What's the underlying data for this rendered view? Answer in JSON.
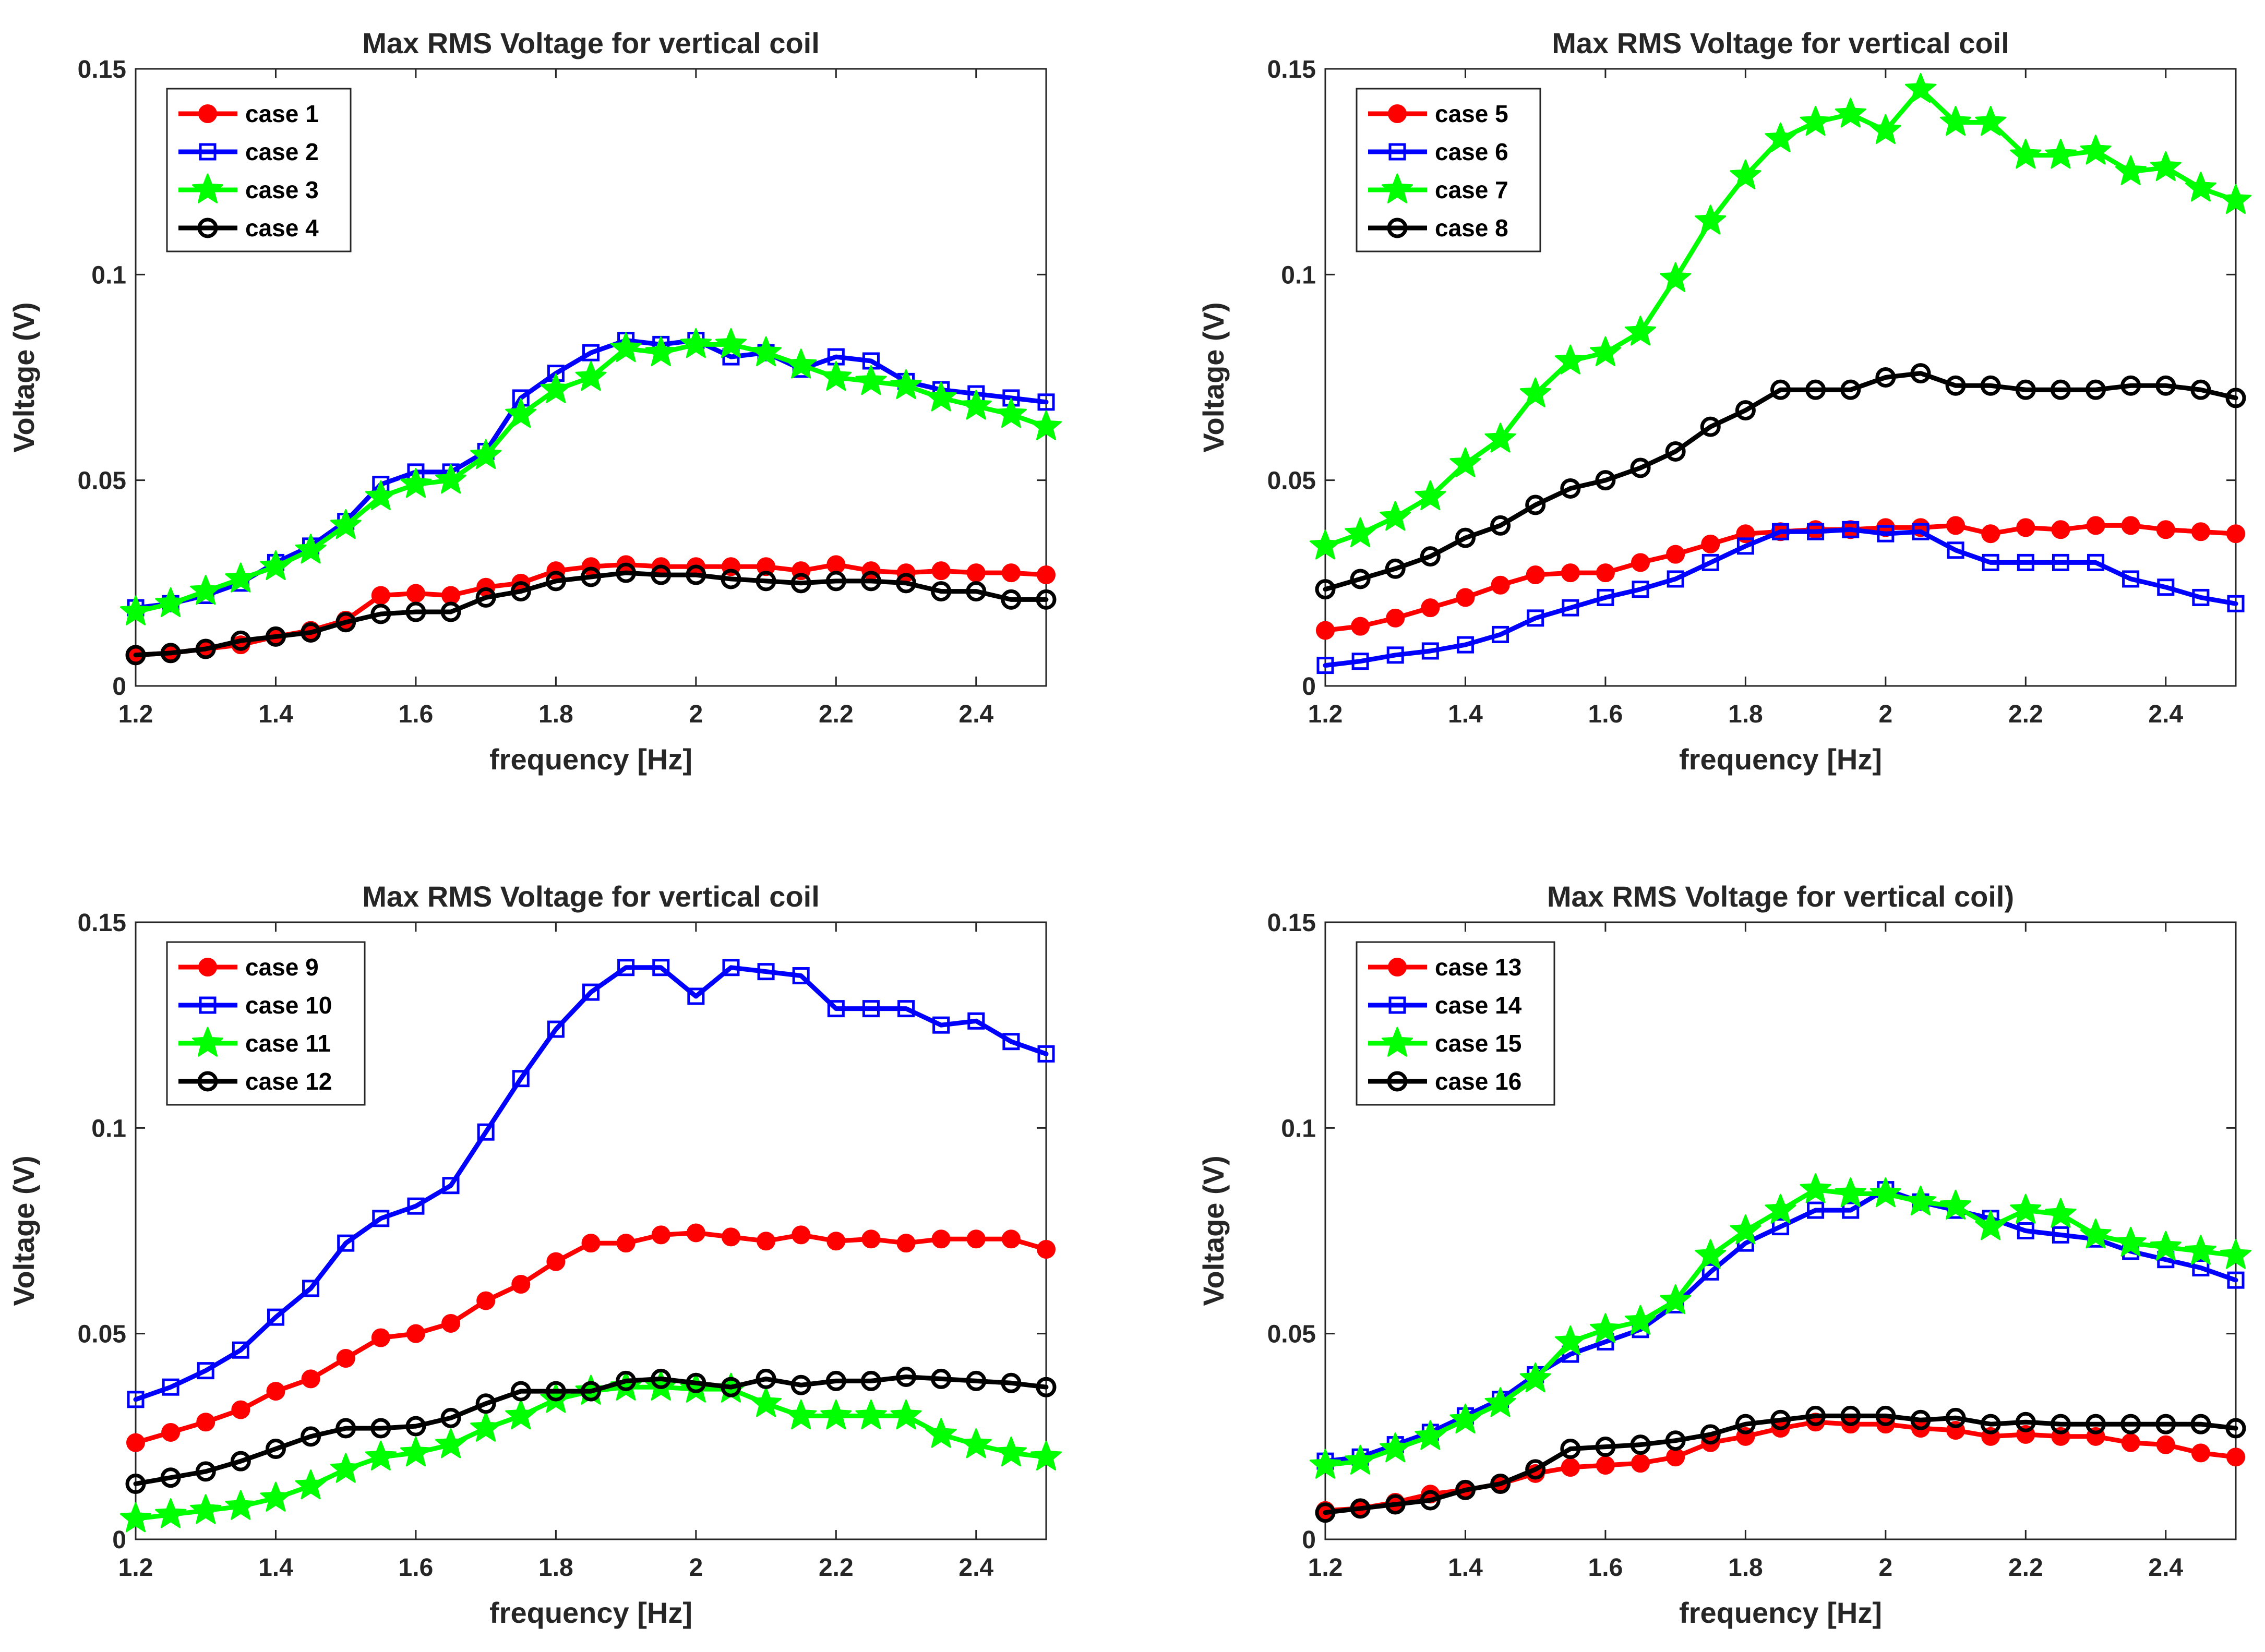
{
  "chart_data": [
    {
      "type": "line",
      "title": "Max RMS Voltage for vertical coil",
      "xlabel": "frequency [Hz]",
      "ylabel": "Voltage (V)",
      "xlim": [
        1.2,
        2.5
      ],
      "ylim": [
        0,
        0.15
      ],
      "xticks": [
        "1.2",
        "1.4",
        "1.6",
        "1.8",
        "2",
        "2.2",
        "2.4"
      ],
      "yticks": [
        "0",
        "0.05",
        "0.1",
        "0.15"
      ],
      "legend_position": "top-left",
      "x": [
        1.2,
        1.25,
        1.3,
        1.35,
        1.4,
        1.45,
        1.5,
        1.55,
        1.6,
        1.65,
        1.7,
        1.75,
        1.8,
        1.85,
        1.9,
        1.95,
        2.0,
        2.05,
        2.1,
        2.15,
        2.2,
        2.25,
        2.3,
        2.35,
        2.4,
        2.45,
        2.5
      ],
      "series": [
        {
          "name": "case 1",
          "color": "#ff0000",
          "marker": "circle-filled",
          "values": [
            0.0075,
            0.008,
            0.009,
            0.01,
            0.012,
            0.0135,
            0.016,
            0.022,
            0.0225,
            0.022,
            0.024,
            0.025,
            0.028,
            0.029,
            0.0295,
            0.029,
            0.029,
            0.029,
            0.029,
            0.028,
            0.0295,
            0.028,
            0.0275,
            0.028,
            0.0275,
            0.0275,
            0.027
          ]
        },
        {
          "name": "case 2",
          "color": "#0000ff",
          "marker": "square-open",
          "values": [
            0.019,
            0.02,
            0.022,
            0.025,
            0.03,
            0.034,
            0.04,
            0.049,
            0.052,
            0.052,
            0.057,
            0.07,
            0.076,
            0.081,
            0.084,
            0.083,
            0.084,
            0.08,
            0.081,
            0.077,
            0.08,
            0.079,
            0.074,
            0.072,
            0.071,
            0.07,
            0.069
          ]
        },
        {
          "name": "case 3",
          "color": "#00ff00",
          "marker": "star",
          "values": [
            0.018,
            0.02,
            0.023,
            0.026,
            0.029,
            0.033,
            0.039,
            0.046,
            0.049,
            0.05,
            0.056,
            0.066,
            0.072,
            0.075,
            0.082,
            0.081,
            0.083,
            0.083,
            0.081,
            0.078,
            0.075,
            0.074,
            0.073,
            0.07,
            0.068,
            0.066,
            0.063
          ]
        },
        {
          "name": "case 4",
          "color": "#000000",
          "marker": "circle-open",
          "values": [
            0.0075,
            0.008,
            0.009,
            0.011,
            0.012,
            0.013,
            0.0155,
            0.0175,
            0.018,
            0.018,
            0.0215,
            0.023,
            0.0255,
            0.0265,
            0.0275,
            0.027,
            0.027,
            0.026,
            0.0255,
            0.025,
            0.0255,
            0.0255,
            0.025,
            0.023,
            0.023,
            0.021,
            0.021
          ]
        }
      ]
    },
    {
      "type": "line",
      "title": "Max RMS Voltage for vertical coil",
      "xlabel": "frequency [Hz]",
      "ylabel": "Voltage (V)",
      "xlim": [
        1.2,
        2.5
      ],
      "ylim": [
        0,
        0.15
      ],
      "xticks": [
        "1.2",
        "1.4",
        "1.6",
        "1.8",
        "2",
        "2.2",
        "2.4"
      ],
      "yticks": [
        "0",
        "0.05",
        "0.1",
        "0.15"
      ],
      "legend_position": "top-left",
      "x": [
        1.2,
        1.25,
        1.3,
        1.35,
        1.4,
        1.45,
        1.5,
        1.55,
        1.6,
        1.65,
        1.7,
        1.75,
        1.8,
        1.85,
        1.9,
        1.95,
        2.0,
        2.05,
        2.1,
        2.15,
        2.2,
        2.25,
        2.3,
        2.35,
        2.4,
        2.45,
        2.5
      ],
      "series": [
        {
          "name": "case 5",
          "color": "#ff0000",
          "marker": "circle-filled",
          "values": [
            0.0135,
            0.0145,
            0.0165,
            0.019,
            0.0215,
            0.0245,
            0.027,
            0.0275,
            0.0275,
            0.03,
            0.032,
            0.0345,
            0.037,
            0.0375,
            0.038,
            0.038,
            0.0385,
            0.0385,
            0.039,
            0.037,
            0.0385,
            0.038,
            0.039,
            0.039,
            0.038,
            0.0375,
            0.037
          ]
        },
        {
          "name": "case 6",
          "color": "#0000ff",
          "marker": "square-open",
          "values": [
            0.005,
            0.006,
            0.0075,
            0.0085,
            0.01,
            0.0125,
            0.0165,
            0.019,
            0.0215,
            0.0235,
            0.026,
            0.03,
            0.034,
            0.0375,
            0.0375,
            0.038,
            0.037,
            0.0375,
            0.033,
            0.03,
            0.03,
            0.03,
            0.03,
            0.026,
            0.024,
            0.0215,
            0.02
          ]
        },
        {
          "name": "case 7",
          "color": "#00ff00",
          "marker": "star",
          "values": [
            0.034,
            0.037,
            0.041,
            0.046,
            0.054,
            0.06,
            0.071,
            0.079,
            0.081,
            0.086,
            0.099,
            0.113,
            0.124,
            0.133,
            0.137,
            0.139,
            0.135,
            0.145,
            0.137,
            0.137,
            0.129,
            0.129,
            0.13,
            0.125,
            0.126,
            0.121,
            0.118
          ]
        },
        {
          "name": "case 8",
          "color": "#000000",
          "marker": "circle-open",
          "values": [
            0.0235,
            0.026,
            0.0285,
            0.0315,
            0.036,
            0.039,
            0.044,
            0.048,
            0.05,
            0.053,
            0.057,
            0.063,
            0.067,
            0.072,
            0.072,
            0.072,
            0.075,
            0.076,
            0.073,
            0.073,
            0.072,
            0.072,
            0.072,
            0.073,
            0.073,
            0.072,
            0.07
          ]
        }
      ]
    },
    {
      "type": "line",
      "title": "Max RMS Voltage for vertical coil",
      "xlabel": "frequency [Hz]",
      "ylabel": "Voltage (V)",
      "xlim": [
        1.2,
        2.5
      ],
      "ylim": [
        0,
        0.15
      ],
      "xticks": [
        "1.2",
        "1.4",
        "1.6",
        "1.8",
        "2",
        "2.2",
        "2.4"
      ],
      "yticks": [
        "0",
        "0.05",
        "0.1",
        "0.15"
      ],
      "legend_position": "top-left",
      "x": [
        1.2,
        1.25,
        1.3,
        1.35,
        1.4,
        1.45,
        1.5,
        1.55,
        1.6,
        1.65,
        1.7,
        1.75,
        1.8,
        1.85,
        1.9,
        1.95,
        2.0,
        2.05,
        2.1,
        2.15,
        2.2,
        2.25,
        2.3,
        2.35,
        2.4,
        2.45,
        2.5
      ],
      "series": [
        {
          "name": "case 9",
          "color": "#ff0000",
          "marker": "circle-filled",
          "values": [
            0.0235,
            0.026,
            0.0285,
            0.0315,
            0.036,
            0.039,
            0.044,
            0.049,
            0.05,
            0.0525,
            0.058,
            0.062,
            0.0675,
            0.072,
            0.072,
            0.074,
            0.0745,
            0.0735,
            0.0725,
            0.074,
            0.0725,
            0.073,
            0.072,
            0.073,
            0.073,
            0.073,
            0.0705
          ]
        },
        {
          "name": "case 10",
          "color": "#0000ff",
          "marker": "square-open",
          "values": [
            0.034,
            0.037,
            0.041,
            0.046,
            0.054,
            0.061,
            0.072,
            0.078,
            0.081,
            0.086,
            0.099,
            0.112,
            0.124,
            0.133,
            0.139,
            0.139,
            0.132,
            0.139,
            0.138,
            0.137,
            0.129,
            0.129,
            0.129,
            0.125,
            0.126,
            0.121,
            0.118
          ]
        },
        {
          "name": "case 11",
          "color": "#00ff00",
          "marker": "star",
          "values": [
            0.005,
            0.006,
            0.007,
            0.008,
            0.01,
            0.013,
            0.017,
            0.02,
            0.021,
            0.023,
            0.027,
            0.03,
            0.034,
            0.036,
            0.037,
            0.037,
            0.0365,
            0.0365,
            0.033,
            0.03,
            0.03,
            0.03,
            0.03,
            0.0255,
            0.023,
            0.021,
            0.02
          ]
        },
        {
          "name": "case 12",
          "color": "#000000",
          "marker": "circle-open",
          "values": [
            0.0135,
            0.015,
            0.0165,
            0.019,
            0.022,
            0.025,
            0.027,
            0.027,
            0.0275,
            0.0295,
            0.033,
            0.036,
            0.036,
            0.036,
            0.0385,
            0.039,
            0.038,
            0.037,
            0.039,
            0.0375,
            0.0385,
            0.0385,
            0.0395,
            0.039,
            0.0385,
            0.038,
            0.037
          ]
        }
      ]
    },
    {
      "type": "line",
      "title": "Max RMS Voltage for vertical coil)",
      "xlabel": "frequency [Hz]",
      "ylabel": "Voltage (V)",
      "xlim": [
        1.2,
        2.5
      ],
      "ylim": [
        0,
        0.15
      ],
      "xticks": [
        "1.2",
        "1.4",
        "1.6",
        "1.8",
        "2",
        "2.2",
        "2.4"
      ],
      "yticks": [
        "0",
        "0.05",
        "0.1",
        "0.15"
      ],
      "legend_position": "top-left",
      "x": [
        1.2,
        1.25,
        1.3,
        1.35,
        1.4,
        1.45,
        1.5,
        1.55,
        1.6,
        1.65,
        1.7,
        1.75,
        1.8,
        1.85,
        1.9,
        1.95,
        2.0,
        2.05,
        2.1,
        2.15,
        2.2,
        2.25,
        2.3,
        2.35,
        2.4,
        2.45,
        2.5
      ],
      "series": [
        {
          "name": "case 13",
          "color": "#ff0000",
          "marker": "circle-filled",
          "values": [
            0.007,
            0.0075,
            0.009,
            0.011,
            0.012,
            0.0135,
            0.016,
            0.0175,
            0.018,
            0.0185,
            0.02,
            0.0235,
            0.025,
            0.027,
            0.0285,
            0.028,
            0.028,
            0.027,
            0.0265,
            0.025,
            0.0255,
            0.025,
            0.025,
            0.0235,
            0.023,
            0.021,
            0.02
          ]
        },
        {
          "name": "case 14",
          "color": "#0000ff",
          "marker": "square-open",
          "values": [
            0.019,
            0.02,
            0.023,
            0.026,
            0.03,
            0.034,
            0.04,
            0.045,
            0.048,
            0.051,
            0.057,
            0.065,
            0.072,
            0.076,
            0.08,
            0.08,
            0.085,
            0.082,
            0.08,
            0.078,
            0.075,
            0.074,
            0.073,
            0.07,
            0.068,
            0.066,
            0.063
          ]
        },
        {
          "name": "case 15",
          "color": "#00ff00",
          "marker": "star",
          "values": [
            0.018,
            0.019,
            0.022,
            0.025,
            0.029,
            0.033,
            0.039,
            0.048,
            0.051,
            0.053,
            0.058,
            0.069,
            0.075,
            0.08,
            0.085,
            0.084,
            0.084,
            0.082,
            0.081,
            0.076,
            0.08,
            0.079,
            0.074,
            0.072,
            0.071,
            0.07,
            0.069
          ]
        },
        {
          "name": "case 16",
          "color": "#000000",
          "marker": "circle-open",
          "values": [
            0.0065,
            0.0075,
            0.0085,
            0.0095,
            0.012,
            0.0135,
            0.017,
            0.022,
            0.0225,
            0.023,
            0.024,
            0.0255,
            0.028,
            0.029,
            0.03,
            0.03,
            0.03,
            0.029,
            0.0295,
            0.028,
            0.0285,
            0.028,
            0.028,
            0.028,
            0.028,
            0.028,
            0.027
          ]
        }
      ]
    }
  ]
}
